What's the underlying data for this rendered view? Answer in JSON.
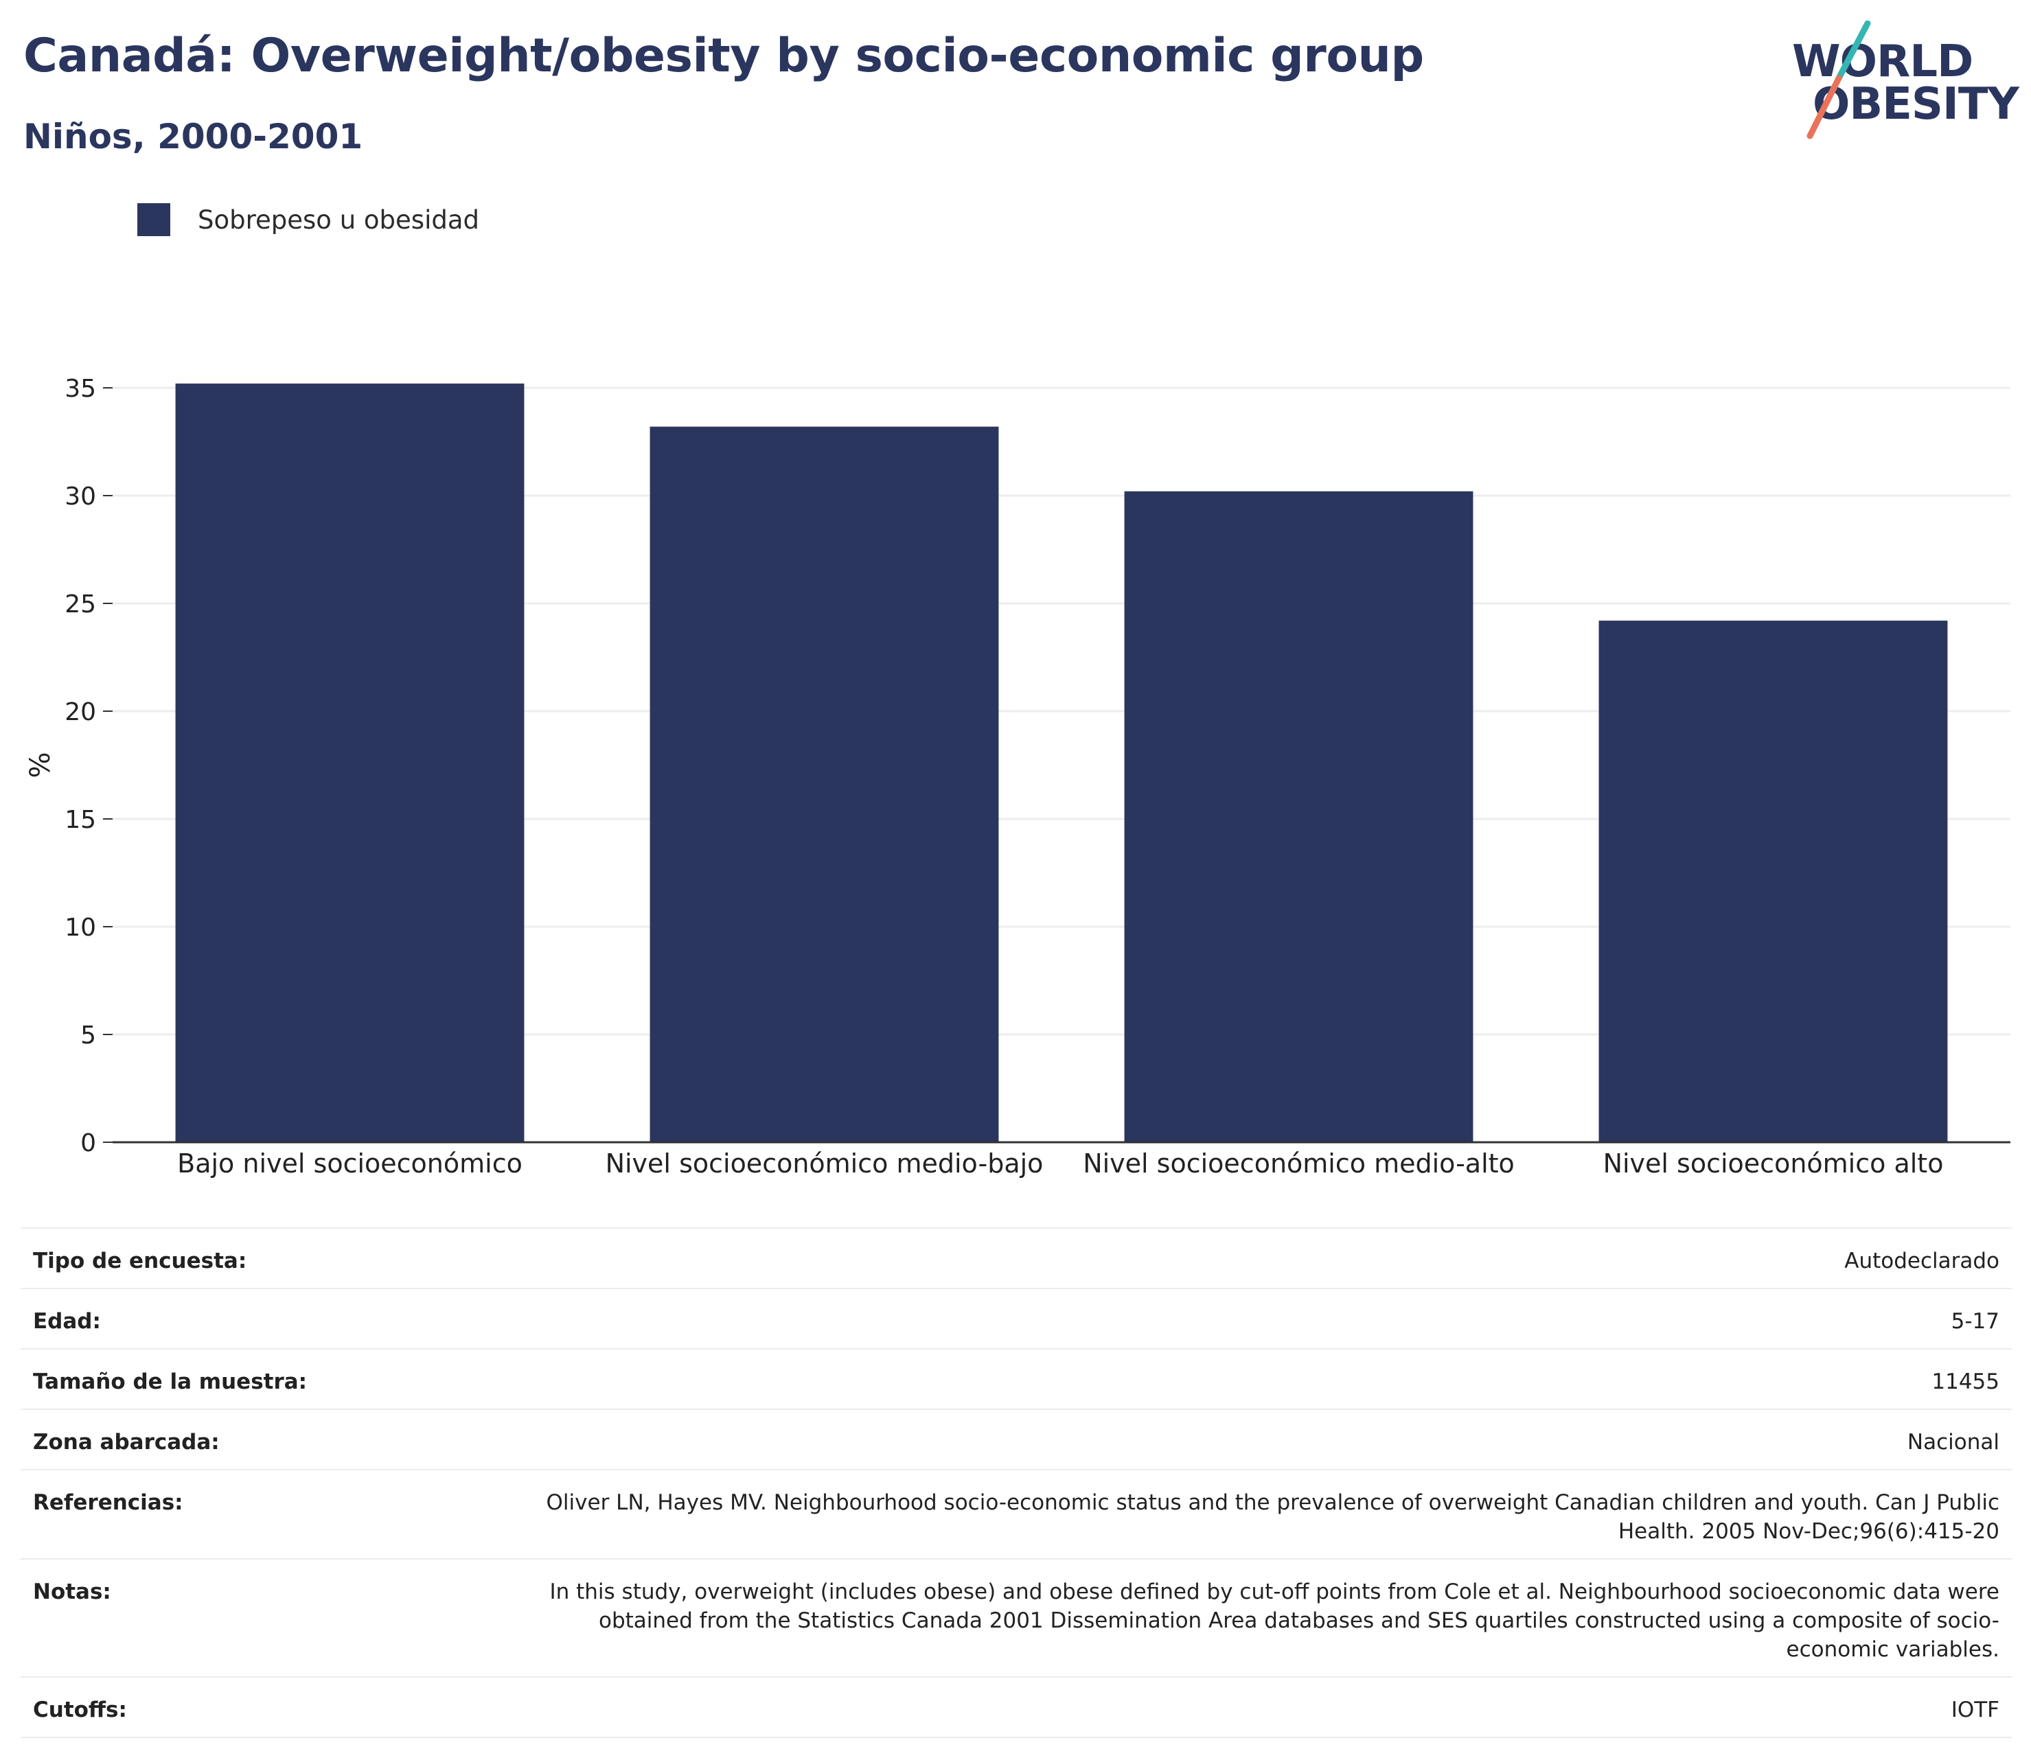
{
  "header": {
    "title": "Canadá: Overweight/obesity by socio-economic group",
    "subtitle": "Niños, 2000-2001"
  },
  "logo": {
    "line1": "WORLD",
    "line2": "OBESITY"
  },
  "colors": {
    "bar": "#2b365f",
    "text": "#2b365f",
    "grid": "#eeeeee",
    "axis": "#333333",
    "logo_teal": "#35b6b4",
    "logo_coral": "#e8735a"
  },
  "chart_data": {
    "type": "bar",
    "title": "",
    "xlabel": "",
    "ylabel": "%",
    "ylim": [
      0,
      35
    ],
    "yticks": [
      0,
      5,
      10,
      15,
      20,
      25,
      30,
      35
    ],
    "grid": true,
    "legend_position": "top-left",
    "categories": [
      "Bajo nivel socioeconómico",
      "Nivel socioeconómico medio-bajo",
      "Nivel socioeconómico medio-alto",
      "Nivel socioeconómico alto"
    ],
    "series": [
      {
        "name": "Sobrepeso u obesidad",
        "values": [
          35.2,
          33.2,
          30.2,
          24.2
        ]
      }
    ]
  },
  "meta": [
    {
      "label": "Tipo de encuesta:",
      "value": "Autodeclarado"
    },
    {
      "label": "Edad:",
      "value": "5-17"
    },
    {
      "label": "Tamaño de la muestra:",
      "value": "11455"
    },
    {
      "label": "Zona abarcada:",
      "value": "Nacional"
    },
    {
      "label": "Referencias:",
      "value": "Oliver LN, Hayes MV. Neighbourhood socio-economic status and the prevalence of overweight Canadian children and youth. Can J Public Health. 2005 Nov-Dec;96(6):415-20"
    },
    {
      "label": "Notas:",
      "value": "In this study, overweight (includes obese) and obese defined by cut-off points from Cole et al. Neighbourhood socioeconomic data were obtained from the Statistics Canada 2001 Dissemination Area databases and SES quartiles constructed using a composite of socio-economic variables."
    },
    {
      "label": "Cutoffs:",
      "value": "IOTF"
    }
  ]
}
